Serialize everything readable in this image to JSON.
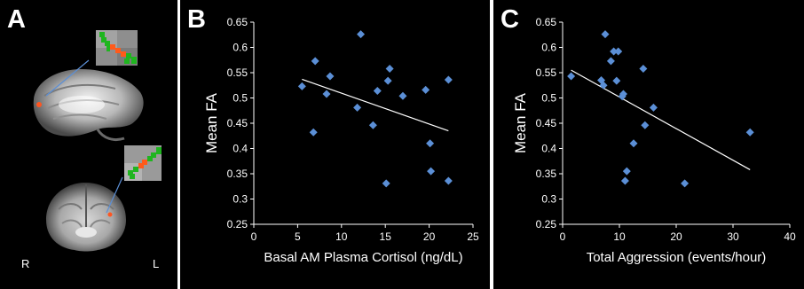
{
  "figure": {
    "panel_a": {
      "letter": "A",
      "right_label": "R",
      "left_label": "L"
    },
    "panel_b": {
      "letter": "B"
    },
    "panel_c": {
      "letter": "C"
    }
  },
  "chart_data": [
    {
      "type": "scatter",
      "panel": "B",
      "xlabel": "Basal AM Plasma Cortisol (ng/dL)",
      "ylabel": "Mean FA",
      "xlim": [
        0,
        25
      ],
      "ylim": [
        0.25,
        0.65
      ],
      "xticks": [
        0,
        5,
        10,
        15,
        20,
        25
      ],
      "yticks": [
        0.25,
        0.3,
        0.35,
        0.4,
        0.45,
        0.5,
        0.55,
        0.6,
        0.65
      ],
      "ytick_labels": [
        "0.25",
        "0.3",
        "0.35",
        "0.4",
        "0.45",
        "0.5",
        "0.55",
        "0.6",
        "0.65"
      ],
      "marker_color": "#5b8fd6",
      "trendline_color": "#ffffff",
      "trendline": [
        [
          5.5,
          0.537
        ],
        [
          22.2,
          0.435
        ]
      ],
      "x": [
        5.5,
        6.8,
        7.0,
        8.3,
        8.7,
        11.8,
        12.2,
        13.6,
        14.1,
        15.1,
        15.3,
        15.5,
        17.0,
        19.6,
        20.1,
        20.2,
        22.2,
        22.2
      ],
      "y": [
        0.523,
        0.432,
        0.573,
        0.508,
        0.543,
        0.481,
        0.626,
        0.446,
        0.514,
        0.331,
        0.534,
        0.558,
        0.504,
        0.516,
        0.41,
        0.355,
        0.536,
        0.336
      ]
    },
    {
      "type": "scatter",
      "panel": "C",
      "xlabel": "Total Aggression (events/hour)",
      "ylabel": "Mean FA",
      "xlim": [
        0,
        40
      ],
      "ylim": [
        0.25,
        0.65
      ],
      "xticks": [
        0,
        10,
        20,
        30,
        40
      ],
      "yticks": [
        0.25,
        0.3,
        0.35,
        0.4,
        0.45,
        0.5,
        0.55,
        0.6,
        0.65
      ],
      "ytick_labels": [
        "0.25",
        "0.3",
        "0.35",
        "0.4",
        "0.45",
        "0.5",
        "0.55",
        "0.6",
        "0.65"
      ],
      "marker_color": "#5b8fd6",
      "trendline_color": "#ffffff",
      "trendline": [
        [
          1.5,
          0.555
        ],
        [
          33.0,
          0.358
        ]
      ],
      "x": [
        1.5,
        6.8,
        7.2,
        7.5,
        8.5,
        9.0,
        9.5,
        9.8,
        10.5,
        10.7,
        11.0,
        11.3,
        12.5,
        14.2,
        14.5,
        16.0,
        21.5,
        33.0
      ],
      "y": [
        0.543,
        0.535,
        0.525,
        0.626,
        0.573,
        0.592,
        0.534,
        0.592,
        0.503,
        0.508,
        0.336,
        0.355,
        0.41,
        0.558,
        0.446,
        0.481,
        0.331,
        0.432
      ]
    }
  ]
}
